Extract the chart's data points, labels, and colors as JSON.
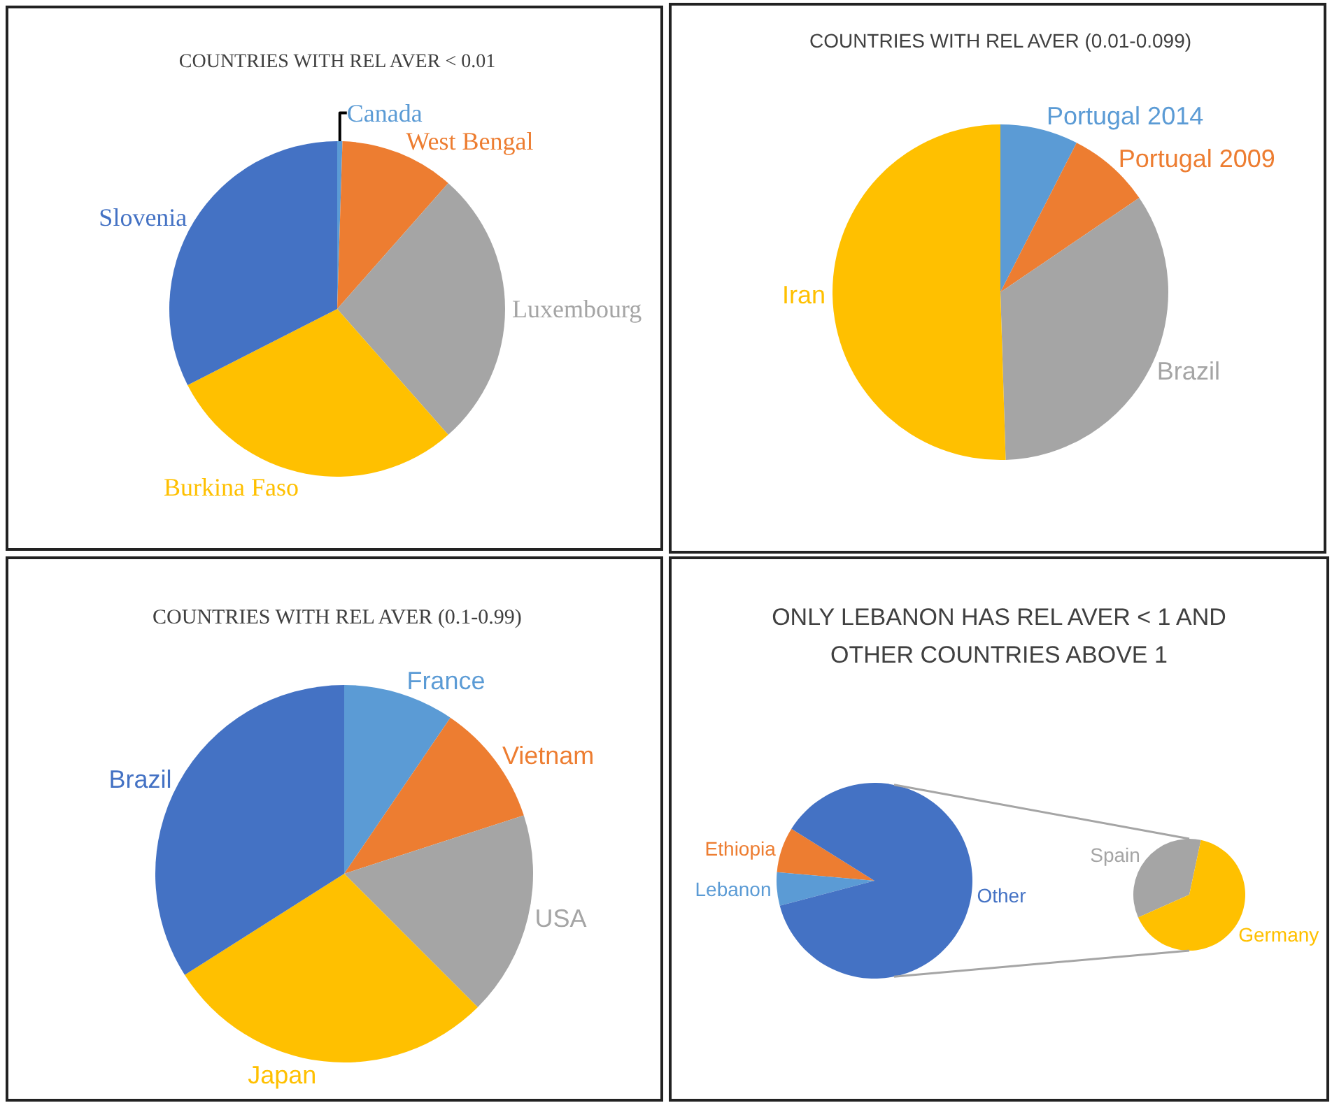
{
  "chart_data": [
    {
      "type": "pie",
      "title": "COUNTRIES WITH REL AVER < 0.01",
      "categories": [
        "Canada",
        "West Bengal",
        "Luxembourg",
        "Burkina Faso",
        "Slovenia"
      ],
      "values": [
        0.5,
        11,
        27,
        29,
        32.5
      ],
      "colors": [
        "#5b9bd5",
        "#ed7d31",
        "#a5a5a5",
        "#ffc000",
        "#4472c4"
      ]
    },
    {
      "type": "pie",
      "title": "COUNTRIES WITH REL AVER (0.01-0.099)",
      "categories": [
        "Portugal 2014",
        "Portugal 2009",
        "Brazil",
        "Iran"
      ],
      "values": [
        7.5,
        8,
        34,
        50.5
      ],
      "colors": [
        "#5b9bd5",
        "#ed7d31",
        "#a5a5a5",
        "#ffc000"
      ]
    },
    {
      "type": "pie",
      "title": "COUNTRIES WITH REL AVER (0.1-0.99)",
      "categories": [
        "France",
        "Vietnam",
        "USA",
        "Japan",
        "Brazil"
      ],
      "values": [
        9.5,
        10.5,
        17.5,
        28.5,
        34
      ],
      "colors": [
        "#5b9bd5",
        "#ed7d31",
        "#a5a5a5",
        "#ffc000",
        "#4472c4"
      ]
    },
    {
      "type": "pie",
      "title": "ONLY LEBANON HAS REL AVER < 1 AND OTHER COUNTRIES ABOVE 1",
      "categories": [
        "Ethiopia",
        "Lebanon",
        "Other"
      ],
      "values": [
        7.5,
        5.5,
        87
      ],
      "colors": [
        "#ed7d31",
        "#5b9bd5",
        "#4472c4"
      ]
    },
    {
      "type": "pie",
      "categories": [
        "Spain",
        "Germany"
      ],
      "values": [
        35,
        65
      ],
      "colors": [
        "#a5a5a5",
        "#ffc000"
      ]
    }
  ]
}
